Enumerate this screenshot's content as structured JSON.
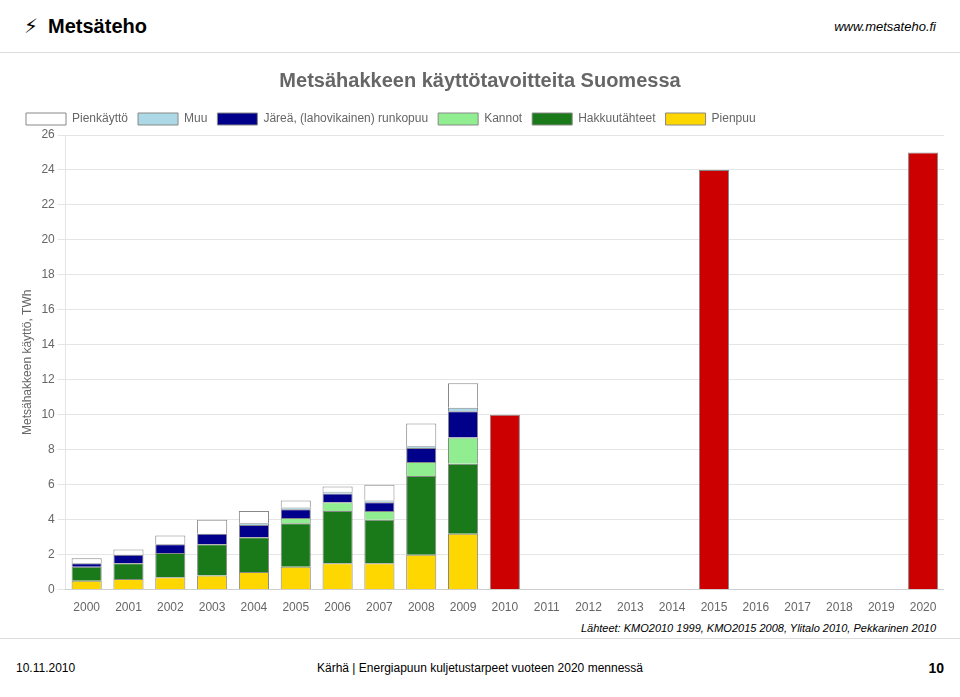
{
  "chart_data": {
    "type": "bar",
    "stacked": true,
    "title": "Metsähakkeen käyttötavoitteita Suomessa",
    "ylabel": "Metsähakkeen käyttö, TWh",
    "categories": [
      "2000",
      "2001",
      "2002",
      "2003",
      "2004",
      "2005",
      "2006",
      "2007",
      "2008",
      "2009",
      "2010",
      "2011",
      "2012",
      "2013",
      "2014",
      "2015",
      "2016",
      "2017",
      "2018",
      "2019",
      "2020"
    ],
    "series": [
      {
        "name": "Pienpuu",
        "color": "#FFD700",
        "values": [
          0.5,
          0.6,
          0.7,
          0.8,
          1.0,
          1.3,
          1.5,
          1.5,
          2.0,
          3.2,
          0,
          0,
          0,
          0,
          0,
          0,
          0,
          0,
          0,
          0,
          0
        ]
      },
      {
        "name": "Hakkuutähteet",
        "color": "#1a7a1a",
        "values": [
          0.8,
          0.9,
          1.4,
          1.8,
          2.0,
          2.5,
          3.0,
          2.5,
          4.5,
          4.0,
          0,
          0,
          0,
          0,
          0,
          0,
          0,
          0,
          0,
          0,
          0
        ]
      },
      {
        "name": "Kannot",
        "color": "#90EE90",
        "values": [
          0.0,
          0.0,
          0.0,
          0.0,
          0.0,
          0.3,
          0.5,
          0.5,
          0.8,
          1.5,
          0,
          0,
          0,
          0,
          0,
          0,
          0,
          0,
          0,
          0,
          0
        ]
      },
      {
        "name": "Järeä, (lahovikainen) runkopuu",
        "color": "#00008B",
        "values": [
          0.2,
          0.5,
          0.5,
          0.6,
          0.7,
          0.5,
          0.5,
          0.5,
          0.8,
          1.5,
          0,
          0,
          0,
          0,
          0,
          0,
          0,
          0,
          0,
          0,
          0
        ]
      },
      {
        "name": "Muu",
        "color": "#add8e6",
        "values": [
          0.0,
          0.0,
          0.0,
          0.0,
          0.1,
          0.1,
          0.1,
          0.1,
          0.1,
          0.2,
          0,
          0,
          0,
          0,
          0,
          0,
          0,
          0,
          0,
          0,
          0
        ]
      },
      {
        "name": "Pienkäyttö",
        "color": "#ffffff",
        "values": [
          0.3,
          0.3,
          0.5,
          0.8,
          0.7,
          0.4,
          0.3,
          0.9,
          1.3,
          1.4,
          0,
          0,
          0,
          0,
          0,
          0,
          0,
          0,
          0,
          0,
          0
        ]
      },
      {
        "color": "#cc0000",
        "values": [
          0,
          0,
          0,
          0,
          0,
          0,
          0,
          0,
          0,
          0,
          10,
          0,
          0,
          0,
          0,
          24,
          0,
          0,
          0,
          0,
          25
        ]
      }
    ],
    "ylim": [
      0,
      26
    ],
    "yticks": [
      0,
      2,
      4,
      6,
      8,
      10,
      12,
      14,
      16,
      18,
      20,
      22,
      24,
      26
    ],
    "grid": true,
    "legend": "upper left",
    "annotations": [
      "⚡",
      "Metsäteho",
      "www.metsateho.fi",
      "Lähteet: KMO2010 1999, KMO2015 2008, Ylitalo 2010, Pekkarinen 2010",
      "10.11.2010",
      "Kärhä | Energiapuun kuljetustarpeet vuoteen 2020 mennessä",
      "10"
    ]
  }
}
